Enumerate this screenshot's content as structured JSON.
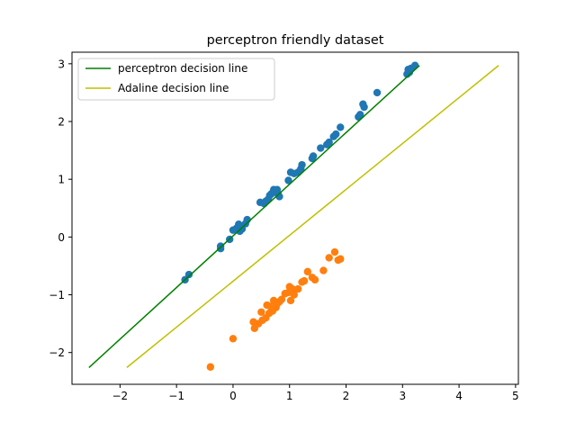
{
  "chart_data": {
    "type": "scatter",
    "title": "perceptron friendly dataset",
    "xlabel": "",
    "ylabel": "",
    "xlim": [
      -2.85,
      5.05
    ],
    "ylim": [
      -2.55,
      3.2
    ],
    "x_ticks": [
      -2,
      -1,
      0,
      1,
      2,
      3,
      4,
      5
    ],
    "y_ticks": [
      -2,
      -1,
      0,
      1,
      2,
      3
    ],
    "grid": false,
    "legend_position": "upper-left",
    "series": [
      {
        "kind": "scatter",
        "color": "#1f77b4",
        "points": [
          [
            -0.85,
            -0.74
          ],
          [
            -0.78,
            -0.65
          ],
          [
            -0.22,
            -0.2
          ],
          [
            -0.22,
            -0.16
          ],
          [
            -0.06,
            -0.04
          ],
          [
            0.0,
            0.12
          ],
          [
            0.06,
            0.15
          ],
          [
            0.1,
            0.22
          ],
          [
            0.12,
            0.1
          ],
          [
            0.16,
            0.14
          ],
          [
            0.22,
            0.23
          ],
          [
            0.25,
            0.3
          ],
          [
            0.48,
            0.6
          ],
          [
            0.55,
            0.58
          ],
          [
            0.58,
            0.62
          ],
          [
            0.62,
            0.65
          ],
          [
            0.65,
            0.72
          ],
          [
            0.68,
            0.75
          ],
          [
            0.72,
            0.82
          ],
          [
            0.74,
            0.78
          ],
          [
            0.78,
            0.82
          ],
          [
            0.8,
            0.74
          ],
          [
            0.82,
            0.7
          ],
          [
            0.98,
            0.98
          ],
          [
            1.02,
            1.12
          ],
          [
            1.08,
            1.1
          ],
          [
            1.15,
            1.12
          ],
          [
            1.2,
            1.18
          ],
          [
            1.22,
            1.25
          ],
          [
            1.4,
            1.36
          ],
          [
            1.42,
            1.4
          ],
          [
            1.55,
            1.54
          ],
          [
            1.66,
            1.6
          ],
          [
            1.7,
            1.64
          ],
          [
            1.78,
            1.74
          ],
          [
            1.82,
            1.78
          ],
          [
            1.9,
            1.9
          ],
          [
            2.22,
            2.08
          ],
          [
            2.25,
            2.12
          ],
          [
            2.3,
            2.3
          ],
          [
            2.32,
            2.25
          ],
          [
            2.55,
            2.5
          ],
          [
            3.08,
            2.82
          ],
          [
            3.1,
            2.9
          ],
          [
            3.12,
            2.85
          ],
          [
            3.15,
            2.92
          ],
          [
            3.22,
            2.97
          ]
        ]
      },
      {
        "kind": "scatter",
        "color": "#ff7f0e",
        "points": [
          [
            -0.4,
            -2.25
          ],
          [
            0.0,
            -1.76
          ],
          [
            0.36,
            -1.47
          ],
          [
            0.38,
            -1.58
          ],
          [
            0.45,
            -1.5
          ],
          [
            0.5,
            -1.3
          ],
          [
            0.52,
            -1.44
          ],
          [
            0.58,
            -1.4
          ],
          [
            0.6,
            -1.18
          ],
          [
            0.64,
            -1.32
          ],
          [
            0.66,
            -1.2
          ],
          [
            0.7,
            -1.28
          ],
          [
            0.72,
            -1.1
          ],
          [
            0.76,
            -1.22
          ],
          [
            0.78,
            -1.16
          ],
          [
            0.82,
            -1.12
          ],
          [
            0.86,
            -1.08
          ],
          [
            0.92,
            -0.98
          ],
          [
            0.98,
            -0.96
          ],
          [
            1.0,
            -0.86
          ],
          [
            1.02,
            -1.1
          ],
          [
            1.05,
            -0.9
          ],
          [
            1.08,
            -1.0
          ],
          [
            1.15,
            -0.9
          ],
          [
            1.22,
            -0.78
          ],
          [
            1.26,
            -0.76
          ],
          [
            1.32,
            -0.6
          ],
          [
            1.4,
            -0.7
          ],
          [
            1.45,
            -0.74
          ],
          [
            1.6,
            -0.58
          ],
          [
            1.7,
            -0.36
          ],
          [
            1.8,
            -0.26
          ],
          [
            1.86,
            -0.4
          ],
          [
            1.9,
            -0.38
          ]
        ]
      },
      {
        "kind": "line",
        "color": "#008000",
        "name": "perceptron decision line",
        "x": [
          -2.55,
          3.3
        ],
        "y": [
          -2.26,
          2.97
        ]
      },
      {
        "kind": "line",
        "color": "#bfbf00",
        "name": "Adaline decision line",
        "x": [
          -1.88,
          4.7
        ],
        "y": [
          -2.26,
          2.97
        ]
      }
    ]
  }
}
